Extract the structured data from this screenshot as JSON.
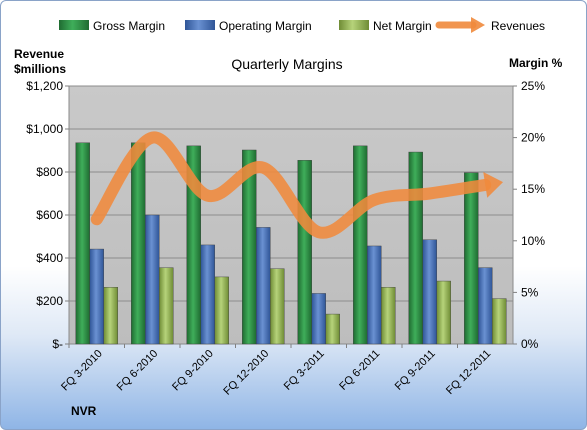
{
  "chart_data": {
    "type": "bar",
    "title": "Quarterly Margins",
    "left_axis_title": [
      "Revenue",
      "$millions"
    ],
    "right_axis_title": "Margin %",
    "company_label": "NVR",
    "categories": [
      "FQ 3-2010",
      "FQ 6-2010",
      "FQ 9-2010",
      "FQ 12-2010",
      "FQ 3-2011",
      "FQ 6-2011",
      "FQ 9-2011",
      "FQ 12-2011"
    ],
    "series": [
      {
        "name": "Gross Margin",
        "axis": "right",
        "type": "bar",
        "color": "#2e8b45",
        "values": [
          19.5,
          19.5,
          19.2,
          18.8,
          17.8,
          19.2,
          18.6,
          16.6
        ]
      },
      {
        "name": "Operating Margin",
        "axis": "right",
        "type": "bar",
        "color": "#4a72b8",
        "values": [
          9.2,
          12.5,
          9.6,
          11.3,
          4.9,
          9.5,
          10.1,
          7.4
        ]
      },
      {
        "name": "Net Margin",
        "axis": "right",
        "type": "bar",
        "color": "#9bbb59",
        "values": [
          5.5,
          7.4,
          6.5,
          7.3,
          2.9,
          5.5,
          6.1,
          4.4
        ]
      },
      {
        "name": "Revenues",
        "axis": "left",
        "type": "line",
        "color": "#f08a3c",
        "values": [
          580,
          960,
          690,
          820,
          520,
          670,
          700,
          740
        ]
      }
    ],
    "left_axis": {
      "min": 0,
      "max": 1200,
      "step": 200,
      "tick_labels": [
        "$-",
        "$200",
        "$400",
        "$600",
        "$800",
        "$1,000",
        "$1,200"
      ]
    },
    "right_axis": {
      "min": 0,
      "max": 25,
      "step": 5,
      "tick_labels": [
        "0%",
        "5%",
        "10%",
        "15%",
        "20%",
        "25%"
      ]
    },
    "legend_position": "top",
    "grid": true
  }
}
